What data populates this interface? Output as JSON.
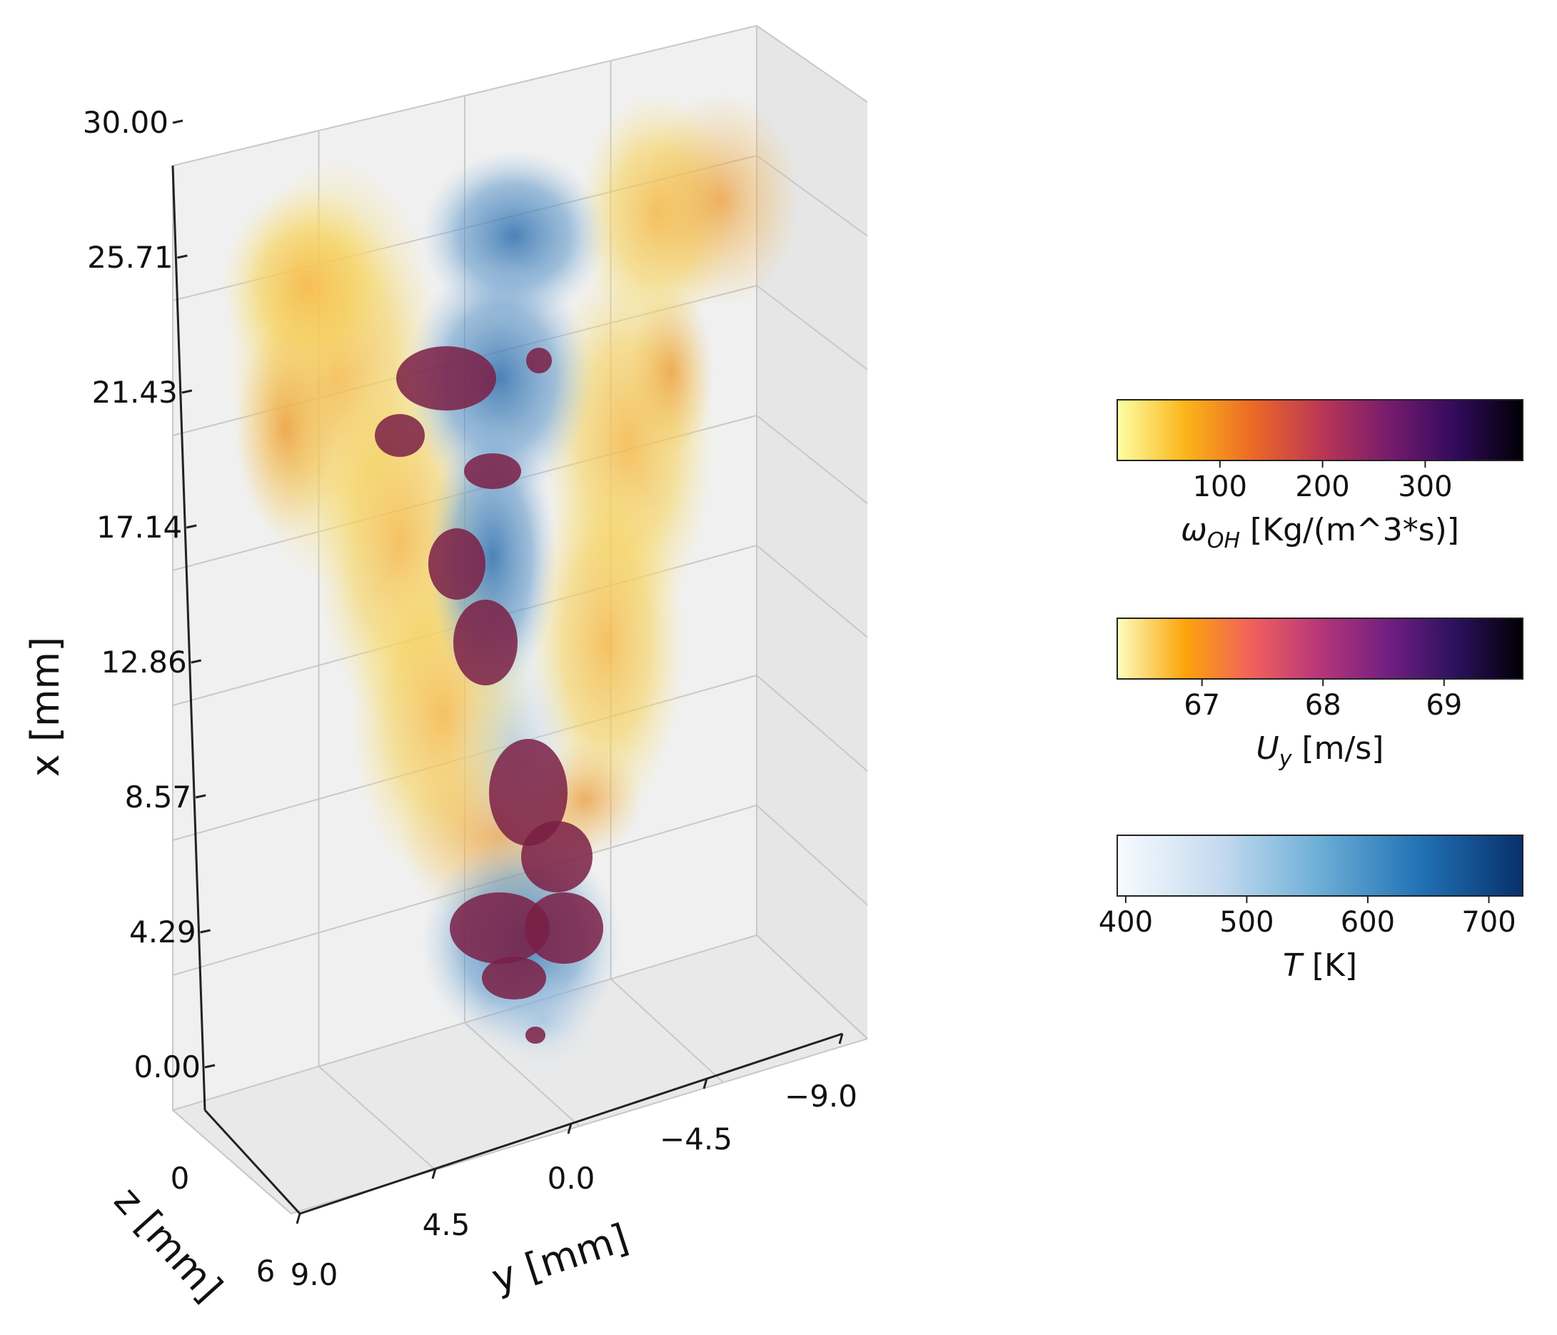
{
  "chart_data": {
    "type": "scatter",
    "projection": "3d",
    "grid": true,
    "axes": {
      "x": {
        "label": "x [mm]",
        "ticks": [
          "0.00",
          "4.29",
          "8.57",
          "12.86",
          "17.14",
          "21.43",
          "25.71",
          "30.00"
        ],
        "range": [
          0,
          32
        ]
      },
      "y": {
        "label": "y [mm]",
        "ticks": [
          "9.0",
          "4.5",
          "0.0",
          "−4.5",
          "−9.0"
        ],
        "range": [
          -9,
          9
        ]
      },
      "z": {
        "label": "z [mm]",
        "ticks": [
          "0",
          "6"
        ],
        "range": [
          0,
          6
        ]
      }
    },
    "series": [
      {
        "colormap": "inferno_r",
        "color": "#f2a93b",
        "region": "outer flame sheets"
      },
      {
        "colormap": "Blues",
        "color": "#3a78b5",
        "region": "central core"
      },
      {
        "colormap": "magma_r",
        "color": "#7a1f45",
        "region": "core pockets"
      }
    ],
    "colorbars": [
      {
        "label_main": "ω",
        "label_sub": "OH",
        "label_rest": " [Kg/(m^3*s)]",
        "colormap": "inferno_r",
        "range": [
          0,
          395
        ],
        "ticks": [
          "100",
          "200",
          "300"
        ],
        "tick_values": [
          100,
          200,
          300
        ],
        "stops": [
          "#fcffa4",
          "#fbb61a",
          "#ed6925",
          "#bc3754",
          "#781c6d",
          "#320a5e",
          "#000004"
        ]
      },
      {
        "label_main": "U",
        "label_sub": "y",
        "label_rest": " [m/s]",
        "colormap": "magma_r",
        "range": [
          66.3,
          69.65
        ],
        "ticks": [
          "67",
          "68",
          "69"
        ],
        "tick_values": [
          67,
          68,
          69
        ],
        "stops": [
          "#fcfdbf",
          "#fca50a",
          "#f1605d",
          "#b63679",
          "#721f81",
          "#2c115f",
          "#000004"
        ]
      },
      {
        "label_main": "T",
        "label_sub": "",
        "label_rest": " [K]",
        "colormap": "Blues",
        "range": [
          393,
          728
        ],
        "ticks": [
          "400",
          "500",
          "600",
          "700"
        ],
        "tick_values": [
          400,
          500,
          600,
          700
        ],
        "stops": [
          "#f7fbff",
          "#c6dbef",
          "#6baed6",
          "#2171b5",
          "#08306b"
        ]
      }
    ]
  }
}
